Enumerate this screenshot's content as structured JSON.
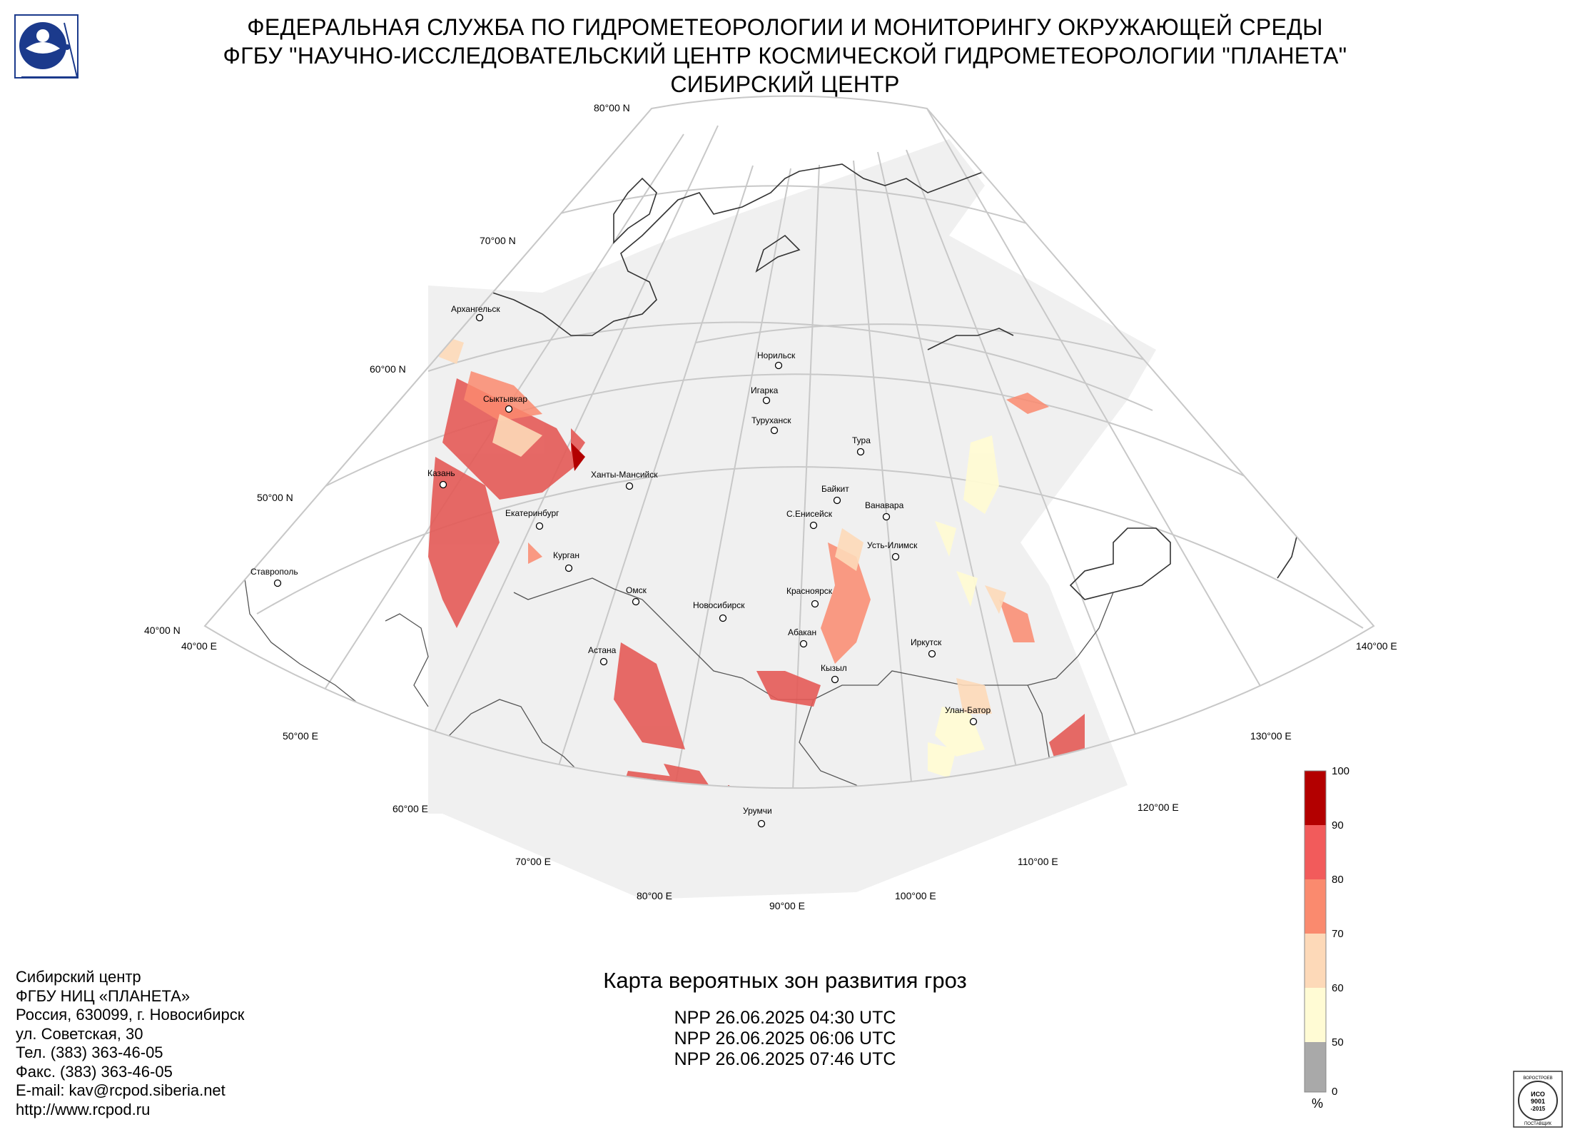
{
  "header": {
    "line1": "ФЕДЕРАЛЬНАЯ СЛУЖБА ПО ГИДРОМЕТЕОРОЛОГИИ И МОНИТОРИНГУ ОКРУЖАЮЩЕЙ СРЕДЫ",
    "line2": "ФГБУ \"НАУЧНО-ИССЛЕДОВАТЕЛЬСКИЙ ЦЕНТР КОСМИЧЕСКОЙ ГИДРОМЕТЕОРОЛОГИИ \"ПЛАНЕТА\"",
    "line3": "СИБИРСКИЙ ЦЕНТР"
  },
  "map": {
    "graticule_labels": {
      "lat80": "80°00 N",
      "lat70": "70°00 N",
      "lat60": "60°00 N",
      "lat50": "50°00 N",
      "lat40": "40°00 N",
      "lon40": "40°00 E",
      "lon50": "50°00 E",
      "lon60": "60°00 E",
      "lon70": "70°00 E",
      "lon80": "80°00 E",
      "lon90": "90°00 E",
      "lon100": "100°00 E",
      "lon110": "110°00 E",
      "lon120": "120°00 E",
      "lon130": "130°00 E",
      "lon140": "140°00 E"
    },
    "cities": [
      {
        "id": "arkhangelsk",
        "name": "Архангельск"
      },
      {
        "id": "syktyvkar",
        "name": "Сыктывкар"
      },
      {
        "id": "kazan",
        "name": "Казань"
      },
      {
        "id": "khanty",
        "name": "Ханты-Мансийск"
      },
      {
        "id": "yekaterinburg",
        "name": "Екатеринбург"
      },
      {
        "id": "kurgan",
        "name": "Курган"
      },
      {
        "id": "stavropol",
        "name": "Ставрополь"
      },
      {
        "id": "omsk",
        "name": "Омск"
      },
      {
        "id": "novosibirsk",
        "name": "Новосибирск"
      },
      {
        "id": "astana",
        "name": "Астана"
      },
      {
        "id": "norilsk",
        "name": "Норильск"
      },
      {
        "id": "igarka",
        "name": "Игарка"
      },
      {
        "id": "turukhansk",
        "name": "Туруханск"
      },
      {
        "id": "tura",
        "name": "Тура"
      },
      {
        "id": "baykit",
        "name": "Байкит"
      },
      {
        "id": "vanavara",
        "name": "Ванавара"
      },
      {
        "id": "seniseisk",
        "name": "С.Енисейск"
      },
      {
        "id": "ustilimsk",
        "name": "Усть-Илимск"
      },
      {
        "id": "krasnoyarsk",
        "name": "Красноярск"
      },
      {
        "id": "abakan",
        "name": "Абакан"
      },
      {
        "id": "kyzyl",
        "name": "Кызыл"
      },
      {
        "id": "irkutsk",
        "name": "Иркутск"
      },
      {
        "id": "ulanbator",
        "name": "Улан-Батор"
      },
      {
        "id": "urumqi",
        "name": "Урумчи"
      }
    ]
  },
  "legend": {
    "ticks": [
      "100",
      "90",
      "80",
      "70",
      "60",
      "50",
      "0"
    ],
    "unit": "%",
    "colors": [
      "#b30000",
      "#f25b5b",
      "#fa8a6e",
      "#fdd9b8",
      "#fffbd4",
      "#a9a9a9"
    ]
  },
  "map_title": "Карта вероятных зон развития гроз",
  "passes": [
    "NPP 26.06.2025  04:30 UTC",
    "NPP 26.06.2025  06:06 UTC",
    "NPP 26.06.2025  07:46 UTC"
  ],
  "contact": {
    "line1": "Сибирский центр",
    "line2": "ФГБУ НИЦ «ПЛАНЕТА»",
    "line3": "Россия, 630099, г. Новосибирск",
    "line4": "ул. Советская, 30",
    "line5": "Тел. (383) 363-46-05",
    "line6": "Факс. (383) 363-46-05",
    "line7": "E-mail: kav@rcpod.siberia.net",
    "line8": "http://www.rcpod.ru"
  },
  "iso_badge": {
    "top": "ВОРОСТРОЕВ",
    "l1": "ИСО",
    "l2": "9001",
    "l3": "-2015",
    "bottom": "ПОСТАВЩИК"
  }
}
